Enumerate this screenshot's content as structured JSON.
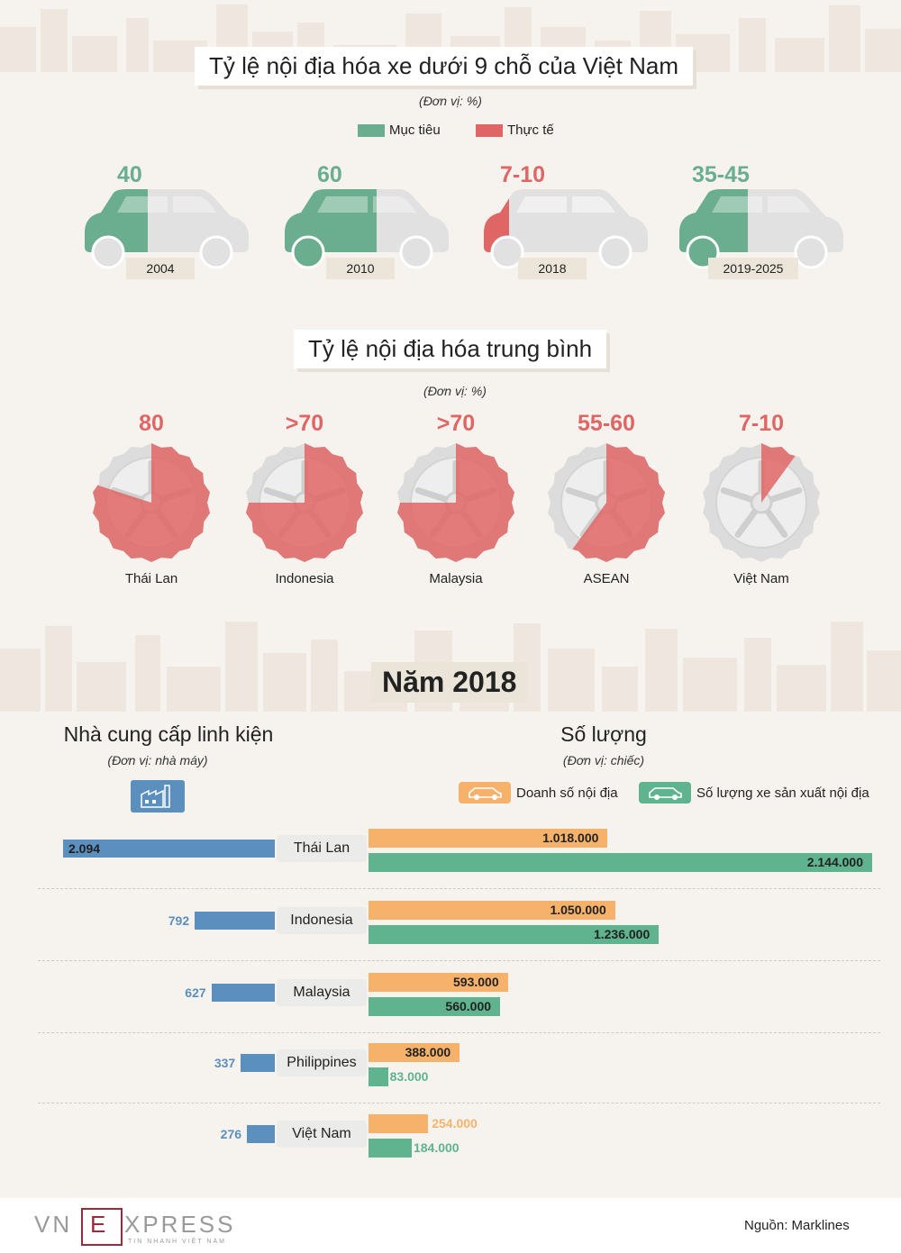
{
  "colors": {
    "target": "#6aae8f",
    "actual": "#e06666",
    "supplier": "#5b8fbd",
    "sales": "#f6b26b",
    "production": "#5fb38f",
    "car_gray": "#e1e1e1"
  },
  "section1": {
    "title": "Tỷ lệ nội địa hóa xe dưới 9 chỗ của Việt Nam",
    "unit": "(Đơn vị: %)",
    "legend": {
      "target": "Mục tiêu",
      "actual": "Thực tế"
    },
    "cars": [
      {
        "value": "40",
        "year": "2004",
        "kind": "target"
      },
      {
        "value": "60",
        "year": "2010",
        "kind": "target"
      },
      {
        "value": "7-10",
        "year": "2018",
        "kind": "actual"
      },
      {
        "value": "35-45",
        "year": "2019-2025",
        "kind": "target"
      }
    ]
  },
  "section2": {
    "title": "Tỷ lệ nội địa hóa trung bình",
    "unit": "(Đơn vị: %)",
    "wheels": [
      {
        "value": "80",
        "label": "Thái Lan",
        "pct": 80
      },
      {
        "value": ">70",
        "label": "Indonesia",
        "pct": 75
      },
      {
        "value": ">70",
        "label": "Malaysia",
        "pct": 75
      },
      {
        "value": "55-60",
        "label": "ASEAN",
        "pct": 60
      },
      {
        "value": "7-10",
        "label": "Việt Nam",
        "pct": 10
      }
    ]
  },
  "section3": {
    "title": "Năm 2018",
    "suppliers_heading": "Nhà cung cấp linh kiện",
    "suppliers_unit": "(Đơn vị: nhà máy)",
    "quantity_heading": "Số lượng",
    "quantity_unit": "(Đơn vị: chiếc)",
    "legend_sales": "Doanh số nội địa",
    "legend_production": "Số lượng xe sản xuất nội địa"
  },
  "chart_data": {
    "type": "bar",
    "categories": [
      "Thái Lan",
      "Indonesia",
      "Malaysia",
      "Philippines",
      "Việt Nam"
    ],
    "series": [
      {
        "name": "Nhà cung cấp linh kiện",
        "values": [
          2094,
          792,
          627,
          337,
          276
        ],
        "labels": [
          "2.094",
          "792",
          "627",
          "337",
          "276"
        ]
      },
      {
        "name": "Doanh số nội địa",
        "values": [
          1018000,
          1050000,
          593000,
          388000,
          254000
        ],
        "labels": [
          "1.018.000",
          "1.050.000",
          "593.000",
          "388.000",
          "254.000"
        ]
      },
      {
        "name": "Số lượng xe sản xuất nội địa",
        "values": [
          2144000,
          1236000,
          560000,
          83000,
          184000
        ],
        "labels": [
          "2.144.000",
          "1.236.000",
          "560.000",
          "83.000",
          "184.000"
        ]
      }
    ]
  },
  "footer": {
    "logo": "VNEXPRESS",
    "logo_sub": "TIN NHANH VIỆT NAM",
    "source": "Nguồn: Marklines"
  }
}
